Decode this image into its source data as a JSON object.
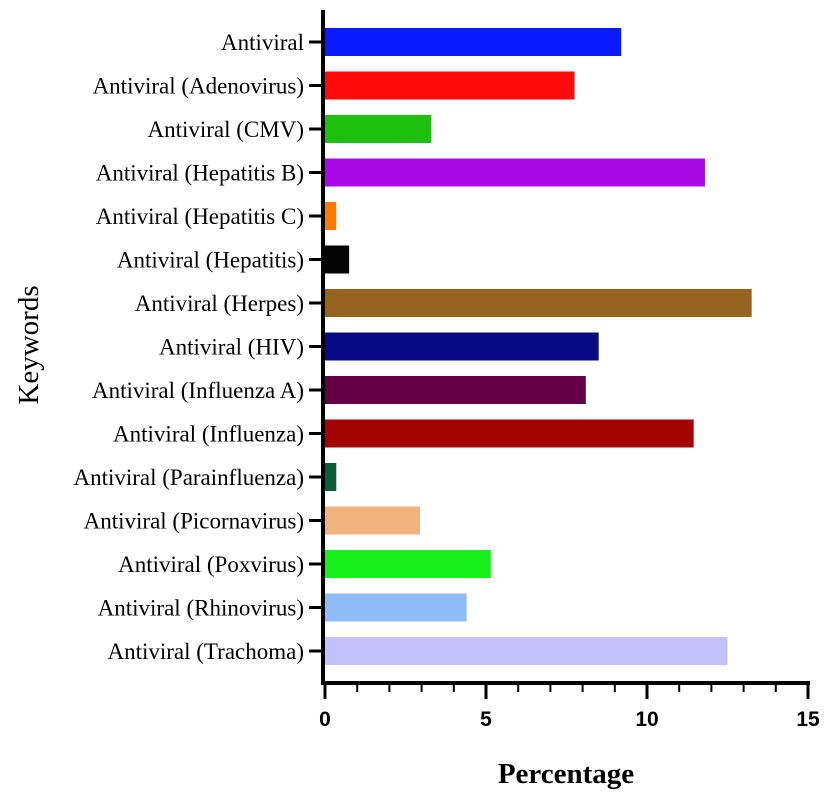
{
  "chart_data": {
    "type": "bar",
    "orientation": "horizontal",
    "xlabel": "Percentage",
    "ylabel": "Keywords",
    "xlim": [
      0,
      15
    ],
    "xticks": [
      0,
      5,
      10,
      15
    ],
    "xtick_labels": [
      "0",
      "5",
      "10",
      "15"
    ],
    "categories": [
      "Antiviral",
      "Antiviral (Adenovirus)",
      "Antiviral (CMV)",
      "Antiviral (Hepatitis B)",
      "Antiviral (Hepatitis C)",
      "Antiviral (Hepatitis)",
      "Antiviral (Herpes)",
      "Antiviral (HIV)",
      "Antiviral (Influenza A)",
      "Antiviral (Influenza)",
      "Antiviral (Parainfluenza)",
      "Antiviral (Picornavirus)",
      "Antiviral (Poxvirus)",
      "Antiviral (Rhinovirus)",
      "Antiviral (Trachoma)"
    ],
    "values": [
      9.2,
      7.75,
      3.3,
      11.8,
      0.35,
      0.75,
      13.25,
      8.5,
      8.1,
      11.45,
      0.35,
      2.95,
      5.15,
      4.4,
      12.5
    ],
    "colors": [
      "#0a1aff",
      "#ff0a0a",
      "#1fbf10",
      "#a80ae6",
      "#ff7a00",
      "#050505",
      "#976420",
      "#070a82",
      "#650047",
      "#a30505",
      "#0b5c3b",
      "#f0b37e",
      "#18f01b",
      "#8fbcf7",
      "#c4c1fc"
    ]
  }
}
